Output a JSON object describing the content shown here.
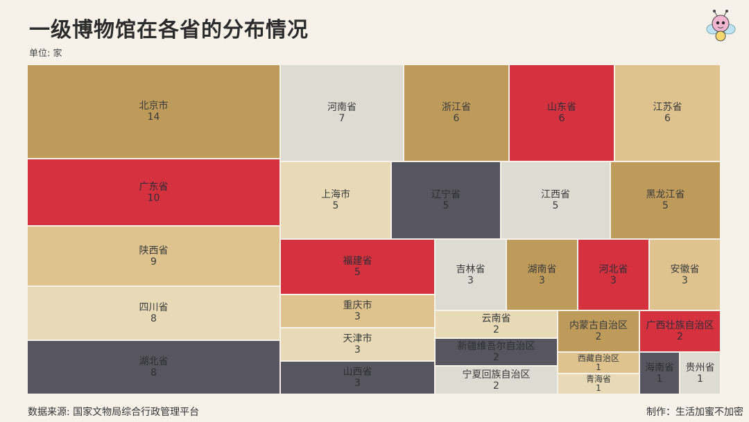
{
  "title": "一级博物馆在各省的分布情况",
  "unit": "单位: 家",
  "source": "数据来源: 国家文物局综合行政管理平台",
  "credit": "制作：生活加蜜不加密",
  "colors": {
    "gold": "#bf9b5b",
    "red": "#d5313f",
    "sand": "#dfc38e",
    "cream": "#e8dab6",
    "gray": "#dcdcd2",
    "slate": "#575660",
    "dark_text": "#333333",
    "light_text": "#3a3a3a"
  },
  "chart_data": {
    "type": "treemap",
    "title": "一级博物馆在各省的分布情况",
    "unit": "家",
    "items": [
      {
        "name": "北京市",
        "value": 14
      },
      {
        "name": "广东省",
        "value": 10
      },
      {
        "name": "陕西省",
        "value": 9
      },
      {
        "name": "四川省",
        "value": 8
      },
      {
        "name": "湖北省",
        "value": 8
      },
      {
        "name": "河南省",
        "value": 7
      },
      {
        "name": "浙江省",
        "value": 6
      },
      {
        "name": "山东省",
        "value": 6
      },
      {
        "name": "江苏省",
        "value": 6
      },
      {
        "name": "上海市",
        "value": 5
      },
      {
        "name": "辽宁省",
        "value": 5
      },
      {
        "name": "江西省",
        "value": 5
      },
      {
        "name": "黑龙江省",
        "value": 5
      },
      {
        "name": "福建省",
        "value": 5
      },
      {
        "name": "重庆市",
        "value": 3
      },
      {
        "name": "天津市",
        "value": 3
      },
      {
        "name": "山西省",
        "value": 3
      },
      {
        "name": "吉林省",
        "value": 3
      },
      {
        "name": "湖南省",
        "value": 3
      },
      {
        "name": "河北省",
        "value": 3
      },
      {
        "name": "安徽省",
        "value": 3
      },
      {
        "name": "云南省",
        "value": 2
      },
      {
        "name": "新疆维吾尔自治区",
        "value": 2
      },
      {
        "name": "宁夏回族自治区",
        "value": 2
      },
      {
        "name": "内蒙古自治区",
        "value": 2
      },
      {
        "name": "广西壮族自治区",
        "value": 2
      },
      {
        "name": "西藏自治区",
        "value": 1
      },
      {
        "name": "青海省",
        "value": 1
      },
      {
        "name": "海南省",
        "value": 1
      },
      {
        "name": "贵州省",
        "value": 1
      }
    ]
  }
}
